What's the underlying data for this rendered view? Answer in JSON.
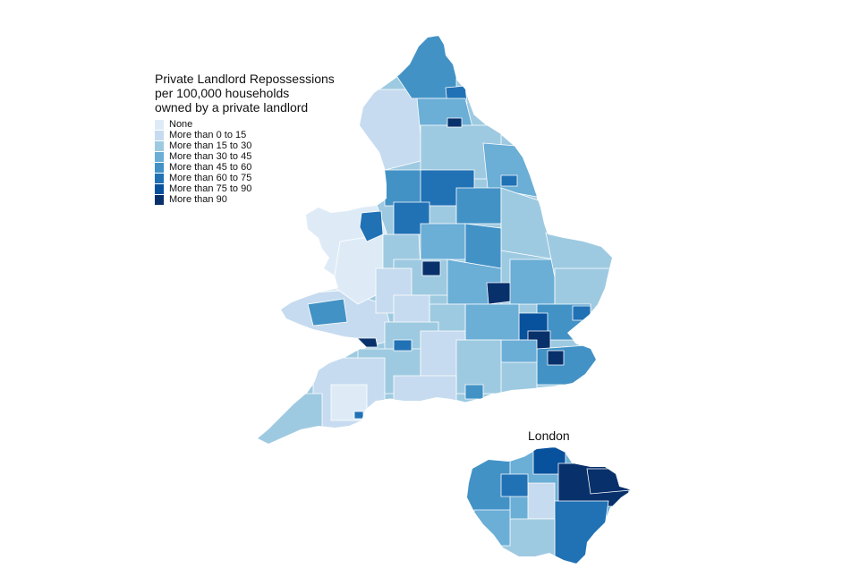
{
  "legend": {
    "title": "Private Landlord Repossessions\nper 100,000 households\nowned by a private landlord",
    "classes": [
      {
        "label": "None",
        "color": "#deebf7"
      },
      {
        "label": "More than 0 to 15",
        "color": "#c6dbef"
      },
      {
        "label": "More than 15 to 30",
        "color": "#9ecae1"
      },
      {
        "label": "More than 30 to 45",
        "color": "#6baed6"
      },
      {
        "label": "More than 45 to 60",
        "color": "#4292c6"
      },
      {
        "label": "More than 60 to 75",
        "color": "#2171b5"
      },
      {
        "label": "More than 75 to 90",
        "color": "#08519c"
      },
      {
        "label": "More than 90",
        "color": "#08306b"
      }
    ]
  },
  "inset": {
    "title": "London"
  },
  "colors": {
    "background": "#ffffff",
    "boundary": "#ffffff"
  }
}
